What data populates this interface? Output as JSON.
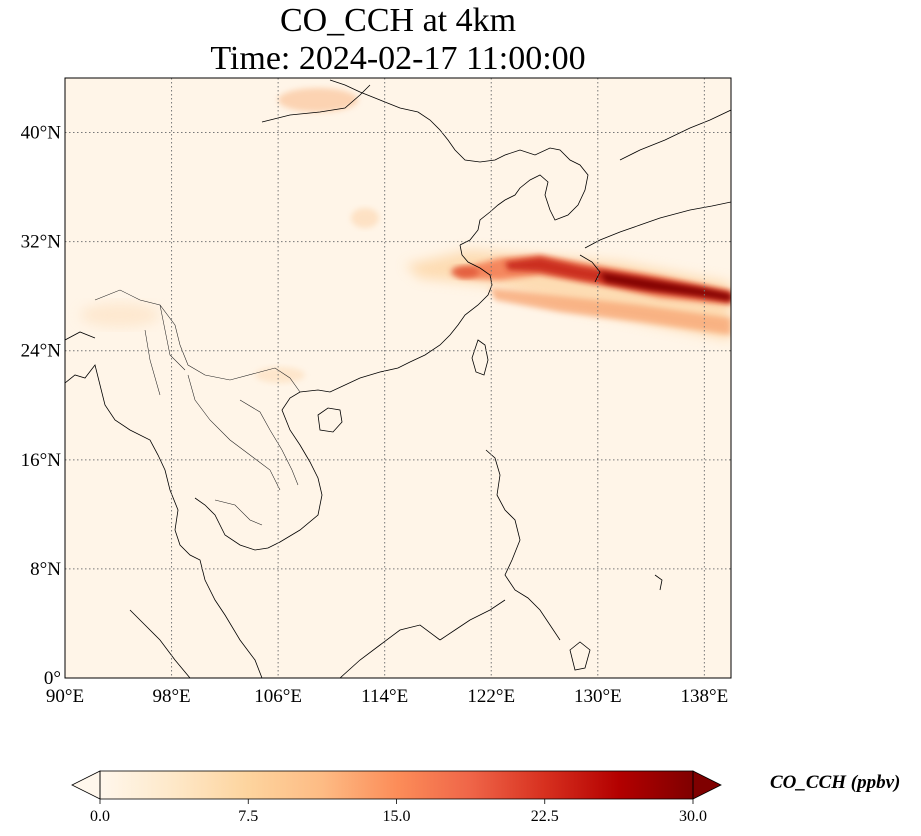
{
  "title": {
    "line1": "CO_CCH at 4km",
    "line2": "Time: 2024-02-17 11:00:00"
  },
  "map": {
    "variable": "CO_CCH",
    "level": "4km",
    "timestamp": "2024-02-17 11:00:00",
    "projection": "PlateCarree",
    "lon_range": [
      90,
      140
    ],
    "lat_range": [
      0,
      44
    ],
    "x_ticks": [
      {
        "value": 90,
        "label": "90°E"
      },
      {
        "value": 98,
        "label": "98°E"
      },
      {
        "value": 106,
        "label": "106°E"
      },
      {
        "value": 114,
        "label": "114°E"
      },
      {
        "value": 122,
        "label": "122°E"
      },
      {
        "value": 130,
        "label": "130°E"
      },
      {
        "value": 138,
        "label": "138°E"
      }
    ],
    "y_ticks": [
      {
        "value": 0,
        "label": "0°"
      },
      {
        "value": 8,
        "label": "8°N"
      },
      {
        "value": 16,
        "label": "16°N"
      },
      {
        "value": 24,
        "label": "24°N"
      },
      {
        "value": 32,
        "label": "32°N"
      },
      {
        "value": 40,
        "label": "40°N"
      }
    ],
    "gridlines": true,
    "gridline_style": "dotted",
    "background_color": "#fff5e8",
    "plume_colors": [
      "#fdd6a6",
      "#f4835a",
      "#d43020",
      "#990000",
      "#7f0000"
    ]
  },
  "colorbar": {
    "label": "CO_CCH (ppbv)",
    "range": [
      0,
      30
    ],
    "extend": "both",
    "colormap": "OrRd",
    "colors": [
      "#fff7ec",
      "#fee8c8",
      "#fdd49e",
      "#fdbb84",
      "#fc8d59",
      "#ef6548",
      "#d7301f",
      "#b30000",
      "#7f0000"
    ],
    "ticks": [
      {
        "value": 0,
        "label": "0.0"
      },
      {
        "value": 7.5,
        "label": "7.5"
      },
      {
        "value": 15,
        "label": "15.0"
      },
      {
        "value": 22.5,
        "label": "22.5"
      },
      {
        "value": 30,
        "label": "30.0"
      }
    ]
  }
}
